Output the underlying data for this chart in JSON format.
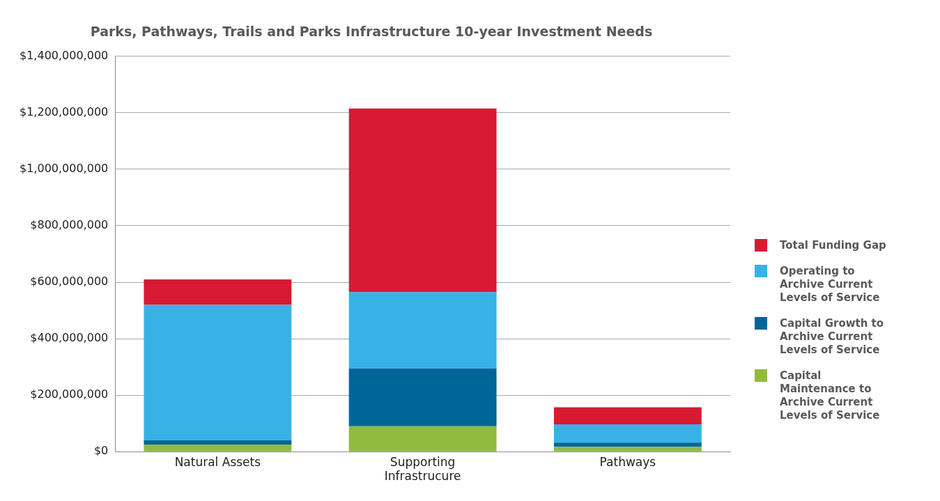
{
  "chart_data": {
    "type": "bar",
    "title": "Parks, Pathways, Trails and Parks Infrastructure 10-year Investment Needs",
    "categories": [
      "Natural Assets",
      "Supporting Infrastrucure",
      "Pathways"
    ],
    "stacked": true,
    "series": [
      {
        "name": "Capital Maintenance to Archive Current Levels of Service",
        "color": "#8fbc3f",
        "values": [
          25000000,
          90000000,
          17000000
        ]
      },
      {
        "name": "Capital Growth to Archive Current Levels of Service",
        "color": "#006699",
        "values": [
          15000000,
          205000000,
          15000000
        ]
      },
      {
        "name": "Operating to Archive Current Levels of Service",
        "color": "#38b2e6",
        "values": [
          480000000,
          270000000,
          65000000
        ]
      },
      {
        "name": "Total Funding Gap",
        "color": "#d71b33",
        "values": [
          90000000,
          650000000,
          60000000
        ]
      }
    ],
    "ylim": [
      0,
      1400000000
    ],
    "yticks": [
      {
        "value": 0,
        "label": "$0"
      },
      {
        "value": 200000000,
        "label": "$200,000,000"
      },
      {
        "value": 400000000,
        "label": "$400,000,000"
      },
      {
        "value": 600000000,
        "label": "$600,000,000"
      },
      {
        "value": 800000000,
        "label": "$800,000,000"
      },
      {
        "value": 1000000000,
        "label": "$1,000,000,000"
      },
      {
        "value": 1200000000,
        "label": "$1,200,000,000"
      },
      {
        "value": 1400000000,
        "label": "$1,400,000,000"
      }
    ],
    "grid": "y",
    "legend": "right"
  }
}
